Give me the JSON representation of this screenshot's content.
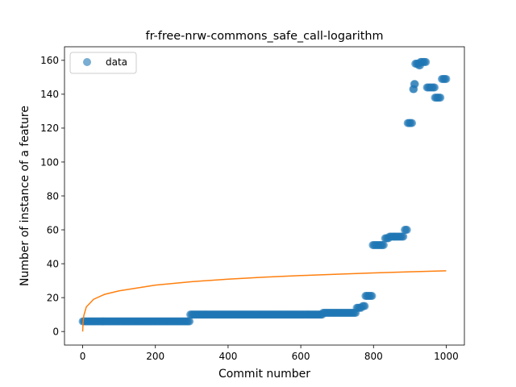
{
  "chart_data": {
    "type": "scatter",
    "title": "fr-free-nrw-commons_safe_call-logarithm",
    "xlabel": "Commit number",
    "ylabel": "Number of instance of a feature",
    "xlim": [
      -50,
      1050
    ],
    "ylim": [
      -8,
      168
    ],
    "xticks": [
      0,
      200,
      400,
      600,
      800,
      1000
    ],
    "yticks": [
      0,
      20,
      40,
      60,
      80,
      100,
      120,
      140,
      160
    ],
    "grid": false,
    "legend": {
      "position": "top-left",
      "entries": [
        "data"
      ]
    },
    "series": [
      {
        "name": "data",
        "kind": "points",
        "color": "#1f77b4",
        "runs": [
          {
            "x_start": 0,
            "x_end": 295,
            "step": 3,
            "y": 6
          },
          {
            "x_start": 296,
            "x_end": 660,
            "step": 3,
            "y": 10
          },
          {
            "x_start": 661,
            "x_end": 752,
            "step": 3,
            "y": 11
          },
          {
            "x_start": 754,
            "x_end": 768,
            "step": 3,
            "y": 14
          },
          {
            "x_start": 770,
            "x_end": 776,
            "step": 3,
            "y": 15
          },
          {
            "x_start": 778,
            "x_end": 796,
            "step": 3,
            "y": 21
          },
          {
            "x_start": 798,
            "x_end": 830,
            "step": 3,
            "y": 51
          },
          {
            "x_start": 832,
            "x_end": 842,
            "step": 3,
            "y": 55
          },
          {
            "x_start": 844,
            "x_end": 856,
            "step": 3,
            "y": 56
          },
          {
            "x_start": 858,
            "x_end": 884,
            "step": 3,
            "y": 56
          },
          {
            "x_start": 886,
            "x_end": 892,
            "step": 3,
            "y": 60
          },
          {
            "x_start": 894,
            "x_end": 908,
            "step": 3,
            "y": 123
          },
          {
            "x_start": 909,
            "x_end": 911,
            "step": 2,
            "y": 143
          },
          {
            "x_start": 912,
            "x_end": 914,
            "step": 2,
            "y": 146
          },
          {
            "x_start": 915,
            "x_end": 924,
            "step": 3,
            "y": 158
          },
          {
            "x_start": 925,
            "x_end": 928,
            "step": 3,
            "y": 157
          },
          {
            "x_start": 929,
            "x_end": 946,
            "step": 3,
            "y": 159
          },
          {
            "x_start": 947,
            "x_end": 968,
            "step": 3,
            "y": 144
          },
          {
            "x_start": 969,
            "x_end": 986,
            "step": 3,
            "y": 138
          },
          {
            "x_start": 988,
            "x_end": 1002,
            "step": 3,
            "y": 149
          }
        ]
      },
      {
        "name": "",
        "kind": "line",
        "color": "#ff7f0e",
        "function": "logarithmic",
        "samples": [
          [
            0,
            0
          ],
          [
            1,
            5.2
          ],
          [
            3,
            9.3
          ],
          [
            10,
            14.5
          ],
          [
            30,
            19.0
          ],
          [
            60,
            21.9
          ],
          [
            100,
            24.0
          ],
          [
            200,
            27.4
          ],
          [
            300,
            29.4
          ],
          [
            400,
            30.9
          ],
          [
            500,
            32.1
          ],
          [
            600,
            33.0
          ],
          [
            700,
            33.8
          ],
          [
            800,
            34.6
          ],
          [
            900,
            35.2
          ],
          [
            1000,
            35.8
          ]
        ]
      }
    ]
  }
}
